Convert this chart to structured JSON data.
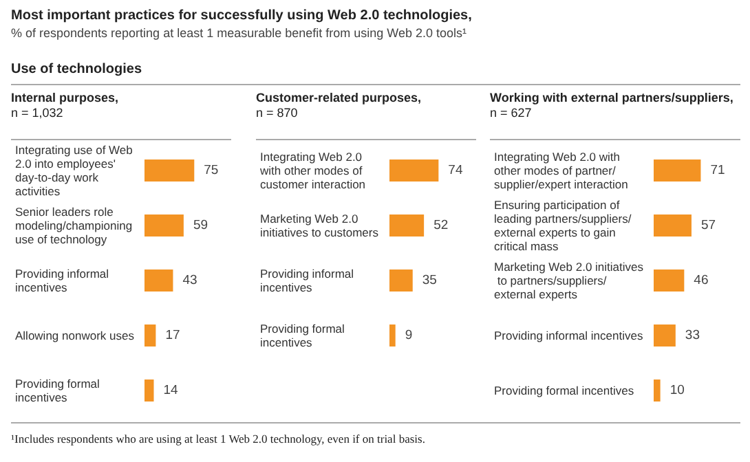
{
  "chart_data": [
    {
      "type": "bar",
      "orientation": "horizontal",
      "title": "Internal purposes,",
      "subtitle": "n = 1,032",
      "annotations": [
        "Most important practices for successfully using Web 2.0 technologies,",
        "% of respondents reporting at least 1 measurable benefit from using Web 2.0 tools¹",
        "Use of technologies",
        "¹Includes respondents who are using at least 1 Web 2.0 technology, even if on trial basis."
      ],
      "categories": [
        "Integrating use of Web 2.0 into employees' day-to-day work activities",
        "Senior leaders role modeling/championing use of technology",
        "Providing informal incentives",
        "Allowing nonwork uses",
        "Providing formal incentives"
      ],
      "values": [
        75,
        59,
        43,
        17,
        14
      ],
      "color": "#f39323",
      "data_labels": true,
      "grid": false
    },
    {
      "type": "bar",
      "orientation": "horizontal",
      "title": "Customer-related purposes,",
      "subtitle": "n = 870",
      "categories": [
        "Integrating Web 2.0 with other modes of customer interaction",
        "Marketing Web 2.0 initiatives to customers",
        "Providing informal incentives",
        "Providing formal incentives"
      ],
      "values": [
        74,
        52,
        35,
        9
      ],
      "color": "#f39323",
      "data_labels": true,
      "grid": false
    },
    {
      "type": "bar",
      "orientation": "horizontal",
      "title": "Working with external partners/suppliers,",
      "subtitle": "n = 627",
      "categories": [
        "Integrating Web 2.0 with other modes of partner/supplier/expert interaction",
        "Ensuring participation of leading partners/suppliers/external experts to gain critical mass",
        "Marketing Web 2.0 initiatives to partners/suppliers/external experts",
        "Providing informal incentives",
        "Providing formal incentives"
      ],
      "values": [
        71,
        57,
        46,
        33,
        10
      ],
      "color": "#f39323",
      "data_labels": true,
      "grid": false
    }
  ]
}
